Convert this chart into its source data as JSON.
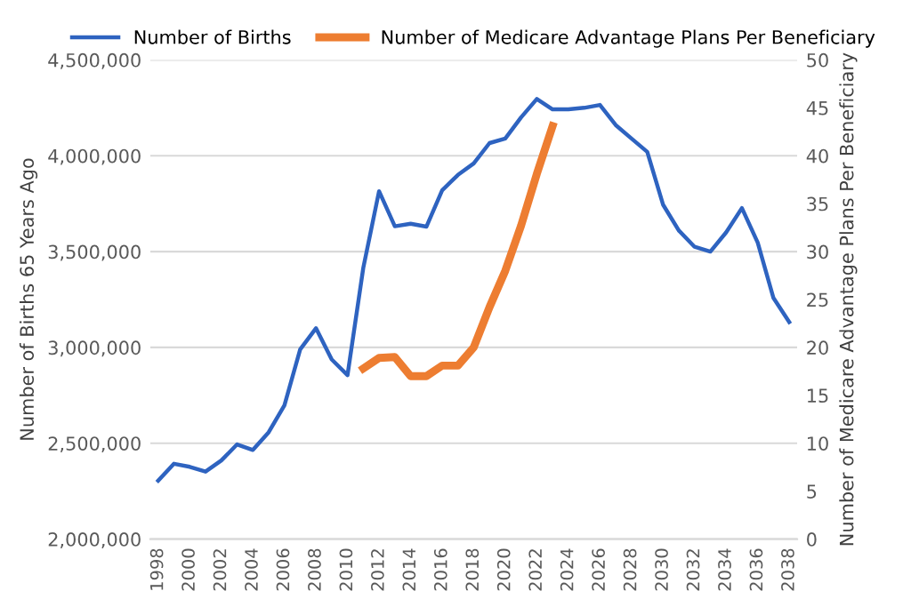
{
  "chart_data": {
    "type": "line",
    "x": [
      1998,
      1999,
      2000,
      2001,
      2002,
      2003,
      2004,
      2005,
      2006,
      2007,
      2008,
      2009,
      2010,
      2011,
      2012,
      2013,
      2014,
      2015,
      2016,
      2017,
      2018,
      2019,
      2020,
      2021,
      2022,
      2023,
      2024,
      2025,
      2026,
      2027,
      2028,
      2029,
      2030,
      2031,
      2032,
      2033,
      2034,
      2035,
      2036,
      2037,
      2038
    ],
    "series": [
      {
        "name": "Number of Births",
        "color": "#2e63c0",
        "values": [
          2305000,
          2393000,
          2377000,
          2352000,
          2410000,
          2494000,
          2465000,
          2557000,
          2698000,
          2990000,
          3100000,
          2937000,
          2855000,
          3415000,
          3815000,
          3632000,
          3645000,
          3630000,
          3820000,
          3900000,
          3960000,
          4066000,
          4090000,
          4200000,
          4296000,
          4242000,
          4242000,
          4250000,
          4265000,
          4160000,
          4090000,
          4020000,
          3745000,
          3610000,
          3525000,
          3500000,
          3600000,
          3727000,
          3547000,
          3258000,
          3132000
        ]
      },
      {
        "name": "Number of Medicare Advantage Plans Per Beneficiary",
        "color": "#ed7d31",
        "axis": "y2",
        "x": [
          2011,
          2012,
          2013,
          2014,
          2015,
          2016,
          2017,
          2018,
          2019,
          2020,
          2021,
          2022,
          2023
        ],
        "values": [
          17.8,
          18.9,
          19.0,
          17.0,
          17.0,
          18.1,
          18.1,
          20.0,
          24.2,
          28.0,
          32.7,
          38.1,
          43.1
        ]
      }
    ],
    "xlim": [
      1997.5,
      2038.5
    ],
    "xticks": [
      1998,
      2000,
      2002,
      2004,
      2006,
      2008,
      2010,
      2012,
      2014,
      2016,
      2018,
      2020,
      2022,
      2024,
      2026,
      2028,
      2030,
      2032,
      2034,
      2036,
      2038
    ],
    "ylim": [
      2000000,
      4500000
    ],
    "yticks": [
      {
        "value": 2000000,
        "label": "2,000,000"
      },
      {
        "value": 2500000,
        "label": "2,500,000"
      },
      {
        "value": 3000000,
        "label": "3,000,000"
      },
      {
        "value": 3500000,
        "label": "3,500,000"
      },
      {
        "value": 4000000,
        "label": "4,000,000"
      },
      {
        "value": 4500000,
        "label": "4,500,000"
      }
    ],
    "y2lim": [
      0,
      50
    ],
    "y2ticks": [
      0,
      5,
      10,
      15,
      20,
      25,
      30,
      35,
      40,
      45,
      50
    ],
    "ylabel": "Number of Births 65 Years Ago",
    "y2label": "Number of Medicare Advantage Plans Per Beneficiary",
    "grid": "y",
    "legend": "top",
    "marker": "none",
    "line_style": "solid"
  }
}
